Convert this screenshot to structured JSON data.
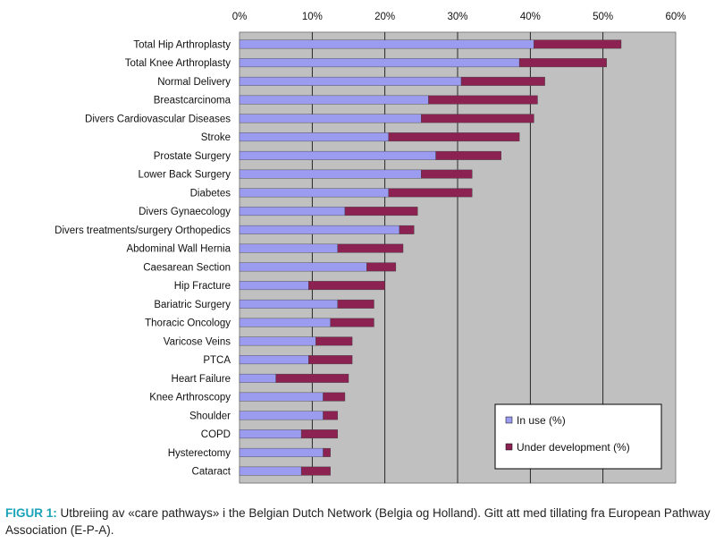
{
  "chart_data": {
    "type": "bar",
    "orientation": "horizontal",
    "stacked": true,
    "title": "",
    "xlabel": "",
    "ylabel": "",
    "xlim": [
      0,
      60
    ],
    "x_ticks": [
      "0%",
      "10%",
      "20%",
      "30%",
      "40%",
      "50%",
      "60%"
    ],
    "grid": true,
    "legend_position": "bottom-right",
    "categories": [
      "Total Hip Arthroplasty",
      "Total Knee Arthroplasty",
      "Normal Delivery",
      "Breastcarcinoma",
      "Divers Cardiovascular Diseases",
      "Stroke",
      "Prostate Surgery",
      "Lower Back Surgery",
      "Diabetes",
      "Divers Gynaecology",
      "Divers treatments/surgery Orthopedics",
      "Abdominal Wall Hernia",
      "Caesarean Section",
      "Hip Fracture",
      "Bariatric Surgery",
      "Thoracic Oncology",
      "Varicose Veins",
      "PTCA",
      "Heart Failure",
      "Knee Arthroscopy",
      "Shoulder",
      "COPD",
      "Hysterectomy",
      "Cataract"
    ],
    "series": [
      {
        "name": "In use (%)",
        "color": "#9b9bf0",
        "values": [
          40.5,
          38.5,
          30.5,
          26,
          25,
          20.5,
          27,
          25,
          20.5,
          14.5,
          22,
          13.5,
          17.5,
          9.5,
          13.5,
          12.5,
          10.5,
          9.5,
          5,
          11.5,
          11.5,
          8.5,
          11.5,
          8.5
        ]
      },
      {
        "name": "Under development (%)",
        "color": "#8b2252",
        "values": [
          12,
          12,
          11.5,
          15,
          15.5,
          18,
          9,
          7,
          11.5,
          10,
          2,
          9,
          4,
          10.5,
          5,
          6,
          5,
          6,
          10,
          3,
          2,
          5,
          1,
          4
        ]
      }
    ],
    "colors": {
      "plot_background": "#c0c0c0",
      "gridline": "#000000"
    }
  },
  "legend": {
    "items": [
      {
        "label": "In use (%)",
        "color": "#9b9bf0"
      },
      {
        "label": "Under development (%)",
        "color": "#8b2252"
      }
    ]
  },
  "caption": {
    "lead": "FIGUR 1:",
    "text": " Utbreiing av «care pathways» i the Belgian Dutch Network (Belgia og Holland). Gitt att med tillating fra European Pathway Association (E-P-A)."
  }
}
